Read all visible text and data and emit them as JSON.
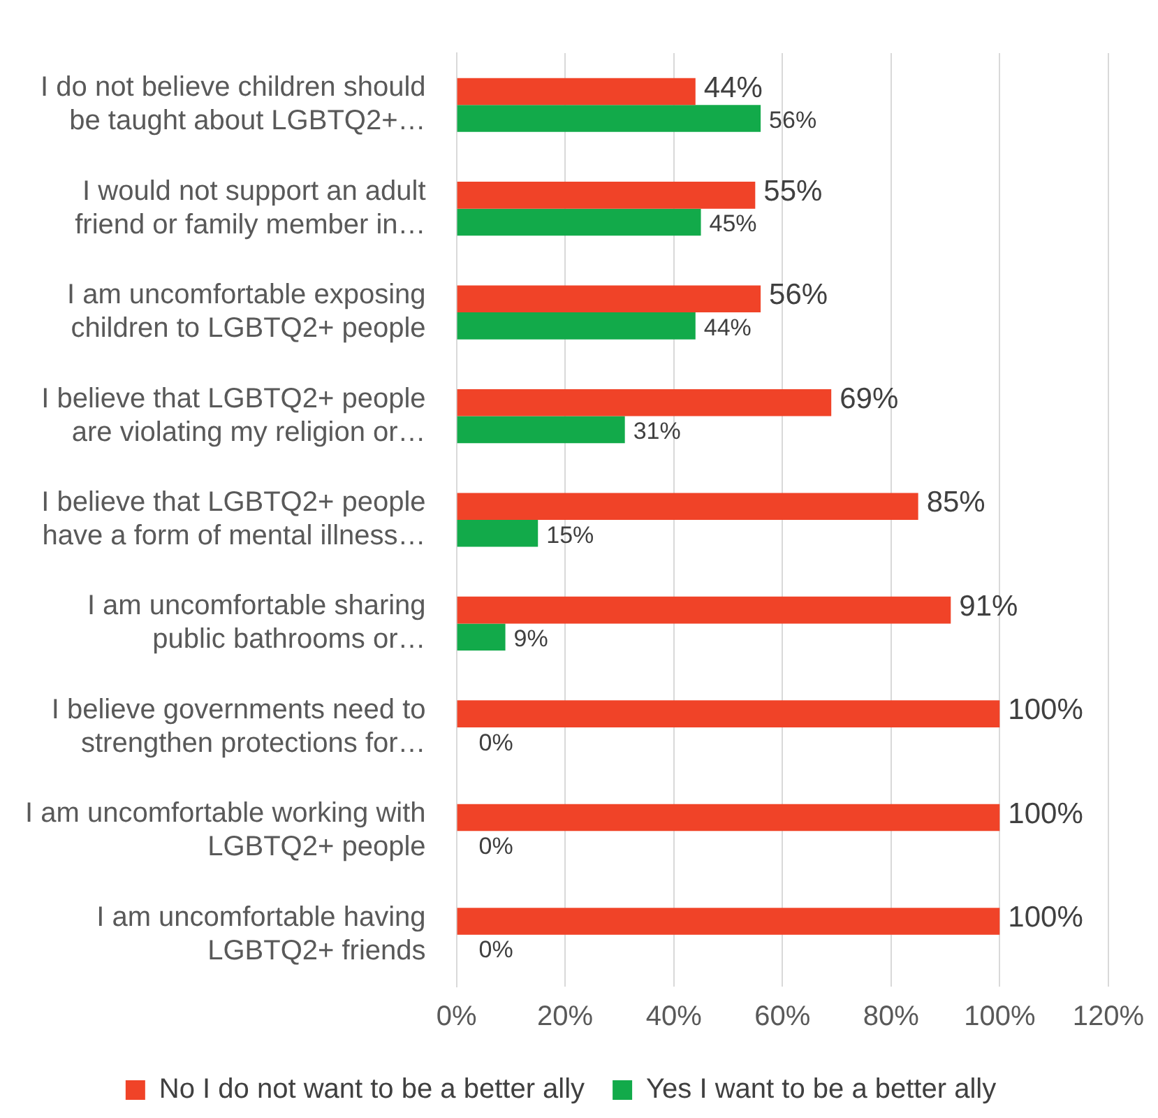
{
  "chart_data": {
    "type": "bar",
    "orientation": "horizontal",
    "categories": [
      "I do not believe children should\nbe taught about LGBTQ2+…",
      "I would not support an adult\nfriend or family member in…",
      "I am uncomfortable exposing\nchildren to LGBTQ2+ people",
      "I believe that LGBTQ2+ people\nare violating my religion or…",
      "I believe that LGBTQ2+ people\nhave a form of mental illness…",
      "I am uncomfortable sharing\npublic bathrooms or…",
      "I believe governments need to\nstrengthen protections for…",
      "I am uncomfortable working with\nLGBTQ2+ people",
      "I am uncomfortable having\nLGBTQ2+ friends"
    ],
    "series": [
      {
        "name": "No I do not want to be a better ally",
        "color": "#f04328",
        "values": [
          44,
          55,
          56,
          69,
          85,
          91,
          100,
          100,
          100
        ],
        "value_labels": [
          "44%",
          "55%",
          "56%",
          "69%",
          "85%",
          "91%",
          "100%",
          "100%",
          "100%"
        ]
      },
      {
        "name": "Yes I want to be a better ally",
        "color": "#12aa4a",
        "values": [
          56,
          45,
          44,
          31,
          15,
          9,
          0,
          0,
          0
        ],
        "value_labels": [
          "56%",
          "45%",
          "44%",
          "31%",
          "15%",
          "9%",
          "0%",
          "0%",
          "0%"
        ]
      }
    ],
    "xlim": [
      0,
      120
    ],
    "xticks": [
      {
        "value": 0,
        "label": "0%"
      },
      {
        "value": 20,
        "label": "20%"
      },
      {
        "value": 40,
        "label": "40%"
      },
      {
        "value": 60,
        "label": "60%"
      },
      {
        "value": 80,
        "label": "80%"
      },
      {
        "value": 100,
        "label": "100%"
      },
      {
        "value": 120,
        "label": "120%"
      }
    ],
    "grid": "x",
    "legend": "bottom"
  }
}
